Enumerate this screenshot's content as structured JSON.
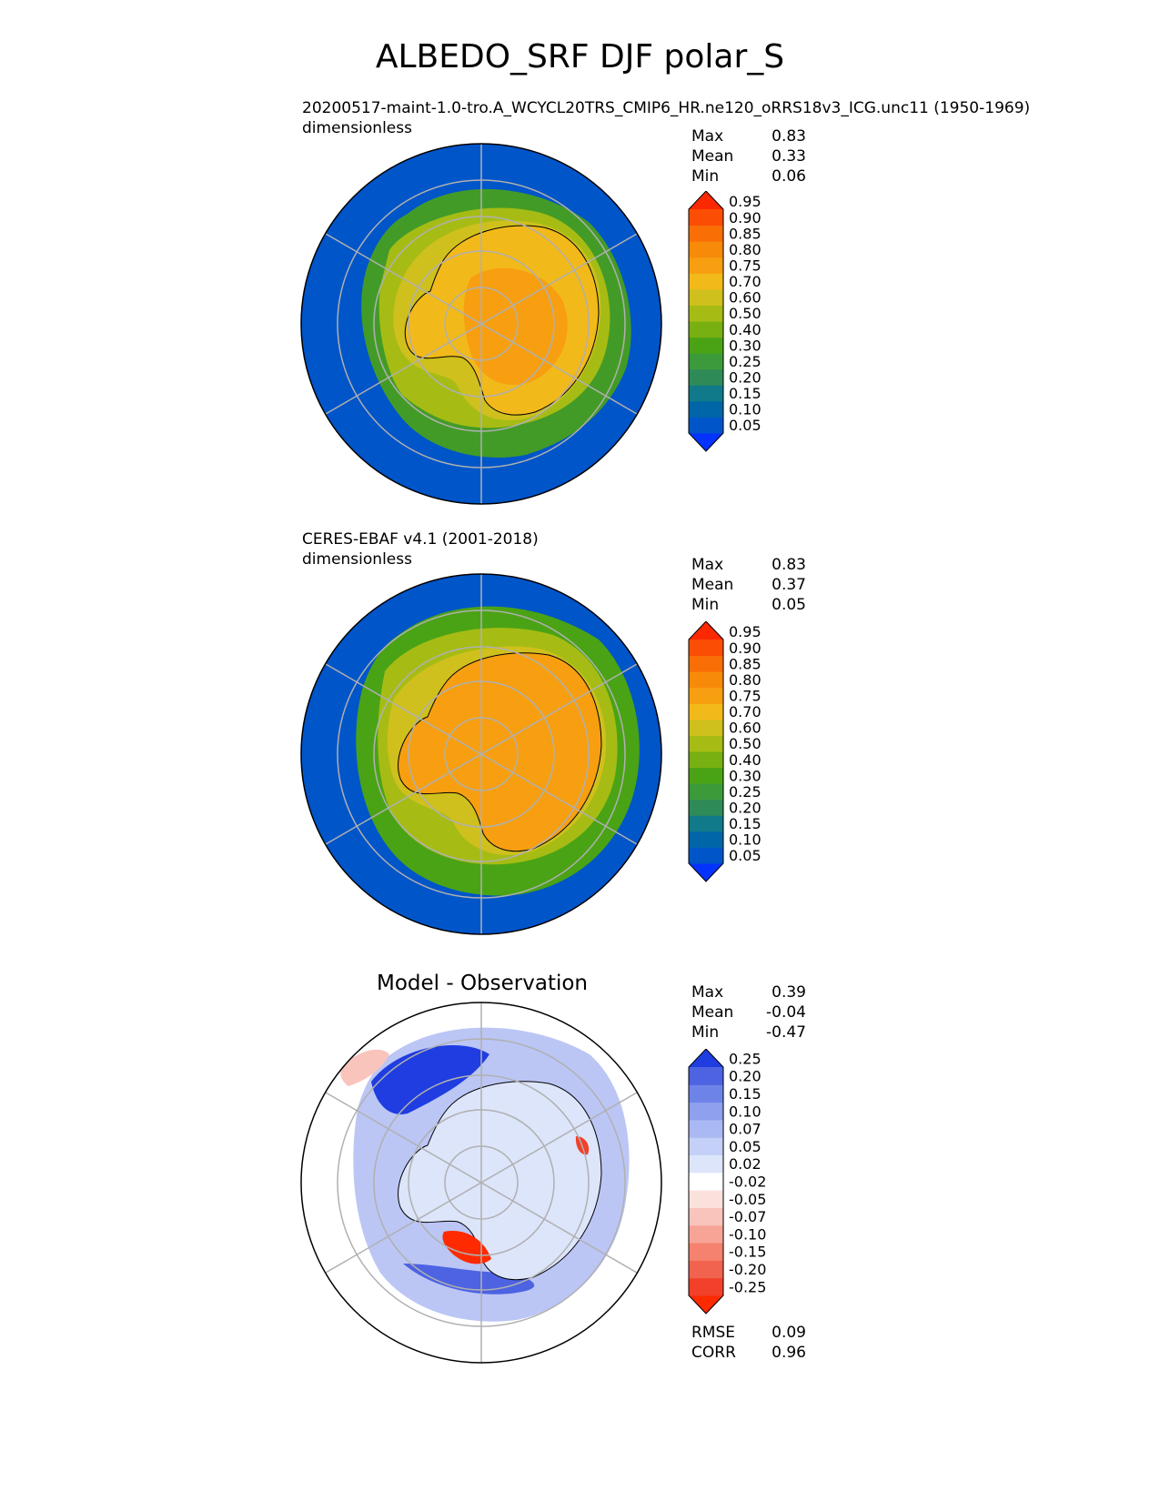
{
  "figure": {
    "title": "ALBEDO_SRF DJF polar_S"
  },
  "panels": [
    {
      "title_line1": "20200517-maint-1.0-tro.A_WCYCL20TRS_CMIP6_HR.ne120_oRRS18v3_ICG.unc11 (1950-1969)",
      "title_line2": "dimensionless",
      "stats": {
        "max_label": "Max",
        "max": "0.83",
        "mean_label": "Mean",
        "mean": "0.33",
        "min_label": "Min",
        "min": "0.06"
      }
    },
    {
      "title_line1": "CERES-EBAF v4.1 (2001-2018)",
      "title_line2": "dimensionless",
      "stats": {
        "max_label": "Max",
        "max": "0.83",
        "mean_label": "Mean",
        "mean": "0.37",
        "min_label": "Min",
        "min": "0.05"
      }
    },
    {
      "title": "Model - Observation",
      "stats": {
        "max_label": "Max",
        "max": "0.39",
        "mean_label": "Mean",
        "mean": "-0.04",
        "min_label": "Min",
        "min": "-0.47"
      },
      "metrics": {
        "rmse_label": "RMSE",
        "rmse": "0.09",
        "corr_label": "CORR",
        "corr": "0.96"
      }
    }
  ],
  "chart_data": [
    {
      "type": "heatmap",
      "projection": "south-polar-stereographic",
      "colorbar": {
        "levels": [
          "0.05",
          "0.10",
          "0.15",
          "0.20",
          "0.25",
          "0.30",
          "0.40",
          "0.50",
          "0.60",
          "0.70",
          "0.75",
          "0.80",
          "0.85",
          "0.90",
          "0.95"
        ],
        "colors": [
          "#0433ff",
          "#0055c9",
          "#0066a8",
          "#107a8a",
          "#2e8b57",
          "#3d9a3a",
          "#4aa315",
          "#78b012",
          "#a6bc14",
          "#cfc01d",
          "#f2b91a",
          "#f79f10",
          "#f88a0a",
          "#f96f06",
          "#fb4d04",
          "#fc2802"
        ],
        "extend": "both"
      }
    },
    {
      "type": "heatmap",
      "projection": "south-polar-stereographic",
      "colorbar": {
        "levels": [
          "0.05",
          "0.10",
          "0.15",
          "0.20",
          "0.25",
          "0.30",
          "0.40",
          "0.50",
          "0.60",
          "0.70",
          "0.75",
          "0.80",
          "0.85",
          "0.90",
          "0.95"
        ],
        "colors": [
          "#0433ff",
          "#0055c9",
          "#0066a8",
          "#107a8a",
          "#2e8b57",
          "#3d9a3a",
          "#4aa315",
          "#78b012",
          "#a6bc14",
          "#cfc01d",
          "#f2b91a",
          "#f79f10",
          "#f88a0a",
          "#f96f06",
          "#fb4d04",
          "#fc2802"
        ],
        "extend": "both"
      }
    },
    {
      "type": "heatmap",
      "projection": "south-polar-stereographic",
      "colorbar": {
        "levels": [
          "0.25",
          "0.20",
          "0.15",
          "0.10",
          "0.07",
          "0.05",
          "0.02",
          "-0.02",
          "-0.05",
          "-0.07",
          "-0.10",
          "-0.15",
          "-0.20",
          "-0.25"
        ],
        "colors": [
          "#ff2a00",
          "#f2402a",
          "#f2634f",
          "#f5826f",
          "#f7a496",
          "#f9c4bb",
          "#fbe1dc",
          "#ffffff",
          "#dde5fb",
          "#c4d0f7",
          "#aab9f3",
          "#8ea0ee",
          "#6e83e8",
          "#4d63e2",
          "#1f3de0"
        ],
        "extend": "both"
      }
    }
  ]
}
